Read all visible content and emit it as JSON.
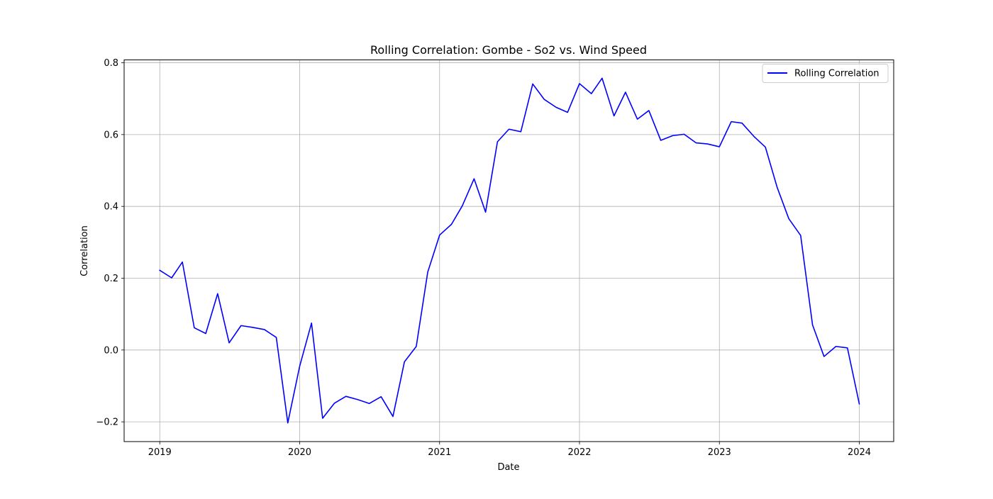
{
  "chart_data": {
    "type": "line",
    "title": "Rolling Correlation: Gombe - So2 vs. Wind Speed",
    "xlabel": "Date",
    "ylabel": "Correlation",
    "x_ticks": [
      "2019",
      "2020",
      "2021",
      "2022",
      "2023",
      "2024"
    ],
    "y_ticks": [
      "−0.2",
      "0.0",
      "0.2",
      "0.4",
      "0.6",
      "0.8"
    ],
    "xlim": [
      "2018-09-30",
      "2024-03-31"
    ],
    "ylim": [
      -0.255,
      0.808
    ],
    "grid": true,
    "legend_position": "top-right",
    "series": [
      {
        "name": "Rolling Correlation",
        "color": "#0000ff",
        "x": [
          "2019-01-01",
          "2019-02-01",
          "2019-03-01",
          "2019-04-01",
          "2019-05-01",
          "2019-06-01",
          "2019-07-01",
          "2019-08-01",
          "2019-09-01",
          "2019-10-01",
          "2019-11-01",
          "2019-12-01",
          "2020-01-01",
          "2020-02-01",
          "2020-03-01",
          "2020-04-01",
          "2020-05-01",
          "2020-06-01",
          "2020-07-01",
          "2020-08-01",
          "2020-09-01",
          "2020-10-01",
          "2020-11-01",
          "2020-12-01",
          "2021-01-01",
          "2021-02-01",
          "2021-03-01",
          "2021-04-01",
          "2021-05-01",
          "2021-06-01",
          "2021-07-01",
          "2021-08-01",
          "2021-09-01",
          "2021-10-01",
          "2021-11-01",
          "2021-12-01",
          "2022-01-01",
          "2022-02-01",
          "2022-03-01",
          "2022-04-01",
          "2022-05-01",
          "2022-06-01",
          "2022-07-01",
          "2022-08-01",
          "2022-09-01",
          "2022-10-01",
          "2022-11-01",
          "2022-12-01",
          "2023-01-01",
          "2023-02-01",
          "2023-03-01",
          "2023-04-01",
          "2023-05-01",
          "2023-06-01",
          "2023-07-01",
          "2023-08-01",
          "2023-09-01",
          "2023-10-01",
          "2023-11-01",
          "2023-12-01",
          "2024-01-01"
        ],
        "y": [
          0.222,
          0.201,
          0.245,
          0.062,
          0.046,
          0.157,
          0.02,
          0.068,
          0.063,
          0.057,
          0.035,
          -0.203,
          -0.045,
          0.075,
          -0.19,
          -0.148,
          -0.129,
          -0.138,
          -0.149,
          -0.13,
          -0.185,
          -0.033,
          0.01,
          0.217,
          0.32,
          0.35,
          0.401,
          0.477,
          0.384,
          0.58,
          0.615,
          0.608,
          0.741,
          0.698,
          0.676,
          0.662,
          0.742,
          0.714,
          0.757,
          0.652,
          0.718,
          0.643,
          0.667,
          0.584,
          0.597,
          0.601,
          0.577,
          0.574,
          0.566,
          0.636,
          0.632,
          0.595,
          0.565,
          0.452,
          0.366,
          0.319,
          0.07,
          -0.018,
          0.01,
          0.006,
          -0.15
        ]
      }
    ]
  }
}
